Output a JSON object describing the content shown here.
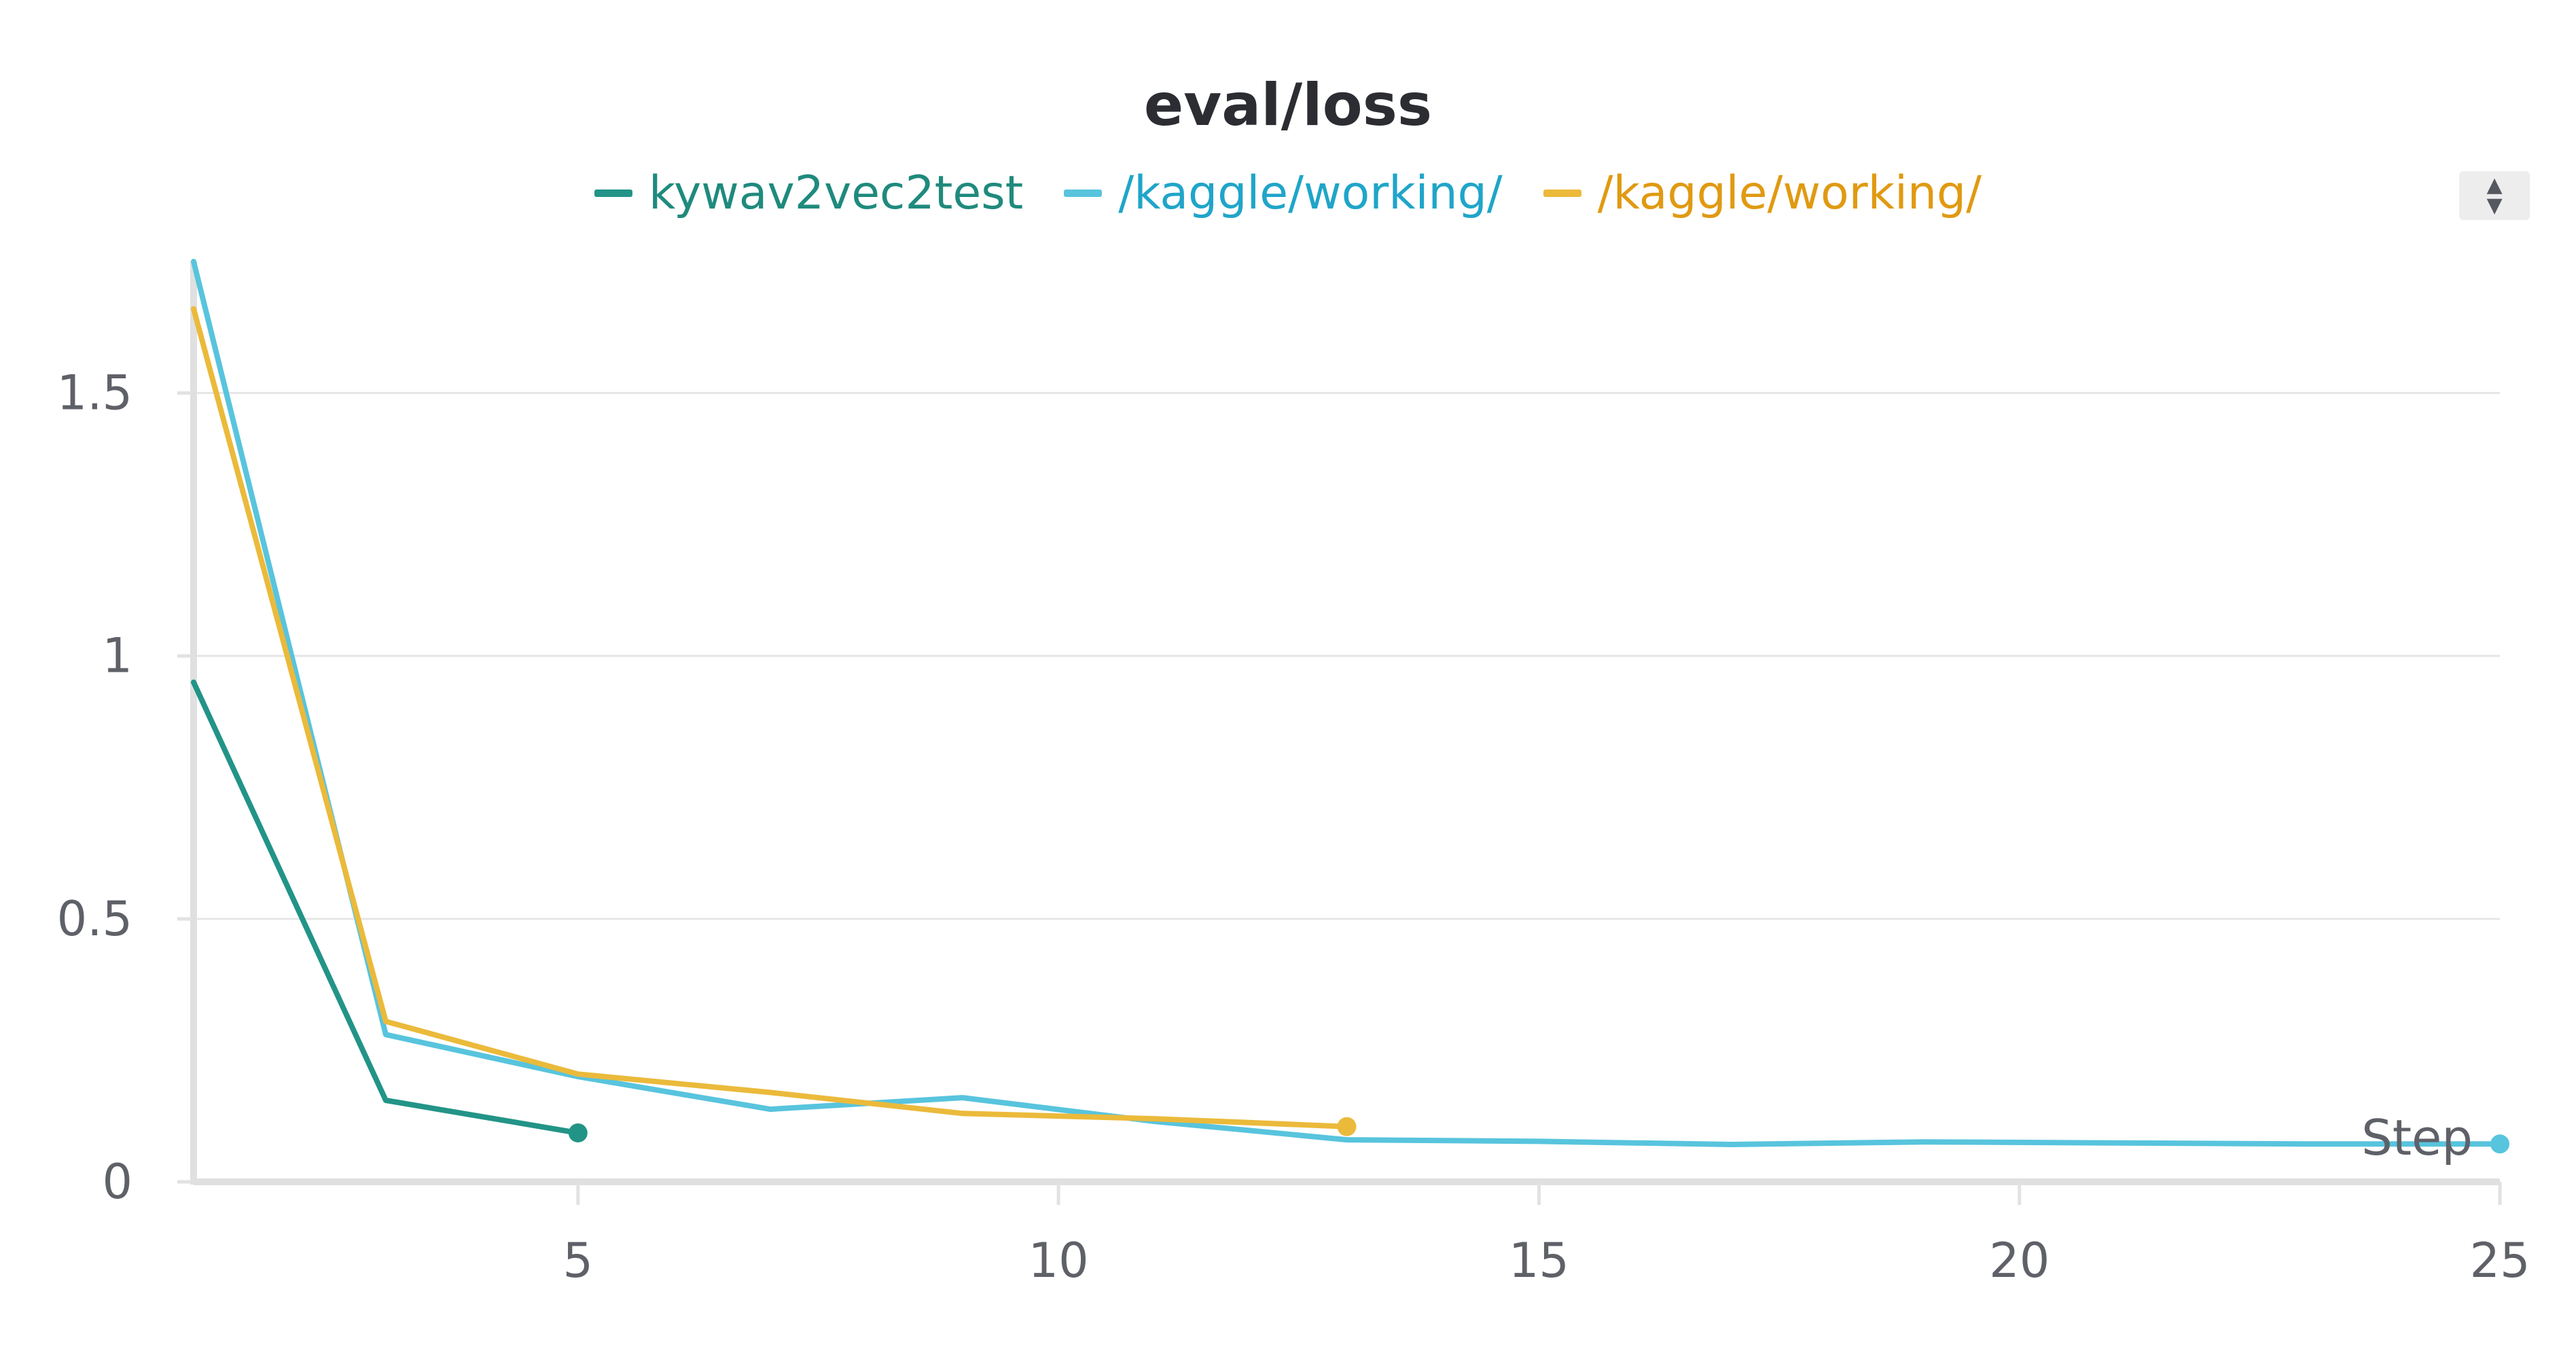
{
  "panel": {
    "sort_up_icon": "triangle-up-icon",
    "sort_down_icon": "triangle-down-icon"
  },
  "chart_data": {
    "type": "line",
    "title": "eval/loss",
    "xlabel": "Step",
    "ylabel": "",
    "xlim": [
      1,
      25
    ],
    "ylim": [
      0,
      1.75
    ],
    "x_ticks": [
      5,
      10,
      15,
      20,
      25
    ],
    "y_ticks": [
      0,
      0.5,
      1,
      1.5
    ],
    "y_tick_labels": [
      "0",
      "0.5",
      "1",
      "1.5"
    ],
    "grid": true,
    "legend_position": "top-center",
    "series": [
      {
        "name": "kywav2vec2test",
        "color": "#229487",
        "legend_text_color": "#1f8a7d",
        "x": [
          1,
          3,
          5
        ],
        "y": [
          0.95,
          0.155,
          0.093
        ]
      },
      {
        "name": "/kaggle/working/",
        "color": "#58c4dd",
        "legend_text_color": "#20a5c9",
        "x": [
          1,
          3,
          5,
          7,
          9,
          11,
          13,
          15,
          17,
          19,
          21,
          23,
          25
        ],
        "y": [
          1.75,
          0.28,
          0.2,
          0.138,
          0.16,
          0.115,
          0.08,
          0.077,
          0.071,
          0.076,
          0.074,
          0.072,
          0.072
        ]
      },
      {
        "name": "/kaggle/working/",
        "color": "#ebba3b",
        "legend_text_color": "#e09a12",
        "x": [
          1,
          3,
          5,
          7,
          9,
          11,
          13
        ],
        "y": [
          1.66,
          0.305,
          0.205,
          0.17,
          0.13,
          0.12,
          0.105
        ]
      }
    ]
  }
}
